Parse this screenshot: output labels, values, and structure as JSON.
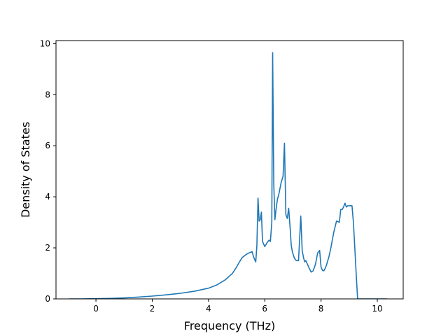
{
  "chart_data": {
    "type": "line",
    "title": "",
    "xlabel": "Frequency (THz)",
    "ylabel": "Density of States",
    "xlim": [
      -1.42,
      10.92
    ],
    "ylim": [
      0,
      10.12
    ],
    "xticks": [
      0,
      2,
      4,
      6,
      8,
      10
    ],
    "yticks": [
      0,
      2,
      4,
      6,
      8,
      10
    ],
    "grid": false,
    "legend": "none",
    "series": [
      {
        "color": "#1f77b4",
        "x": [
          -0.95,
          -0.5,
          0.0,
          0.5,
          1.0,
          1.5,
          2.0,
          2.5,
          3.0,
          3.5,
          4.0,
          4.3,
          4.6,
          4.85,
          5.0,
          5.1,
          5.2,
          5.35,
          5.5,
          5.55,
          5.6,
          5.68,
          5.72,
          5.76,
          5.8,
          5.84,
          5.88,
          5.92,
          6.0,
          6.08,
          6.15,
          6.2,
          6.25,
          6.28,
          6.32,
          6.36,
          6.4,
          6.45,
          6.5,
          6.58,
          6.65,
          6.7,
          6.75,
          6.8,
          6.85,
          6.9,
          6.94,
          6.98,
          7.05,
          7.12,
          7.2,
          7.28,
          7.33,
          7.38,
          7.42,
          7.46,
          7.52,
          7.58,
          7.65,
          7.72,
          7.8,
          7.88,
          7.95,
          8.0,
          8.05,
          8.1,
          8.15,
          8.2,
          8.28,
          8.35,
          8.45,
          8.55,
          8.65,
          8.7,
          8.75,
          8.8,
          8.85,
          8.9,
          8.95,
          9.0,
          9.1,
          9.15,
          9.2,
          9.25,
          9.3,
          9.35,
          9.45,
          9.6,
          10.0,
          10.35
        ],
        "y": [
          0.0,
          0.0,
          0.01,
          0.02,
          0.04,
          0.07,
          0.11,
          0.16,
          0.22,
          0.3,
          0.42,
          0.55,
          0.75,
          1.0,
          1.25,
          1.45,
          1.62,
          1.75,
          1.83,
          1.85,
          1.65,
          1.45,
          2.1,
          3.95,
          3.05,
          3.1,
          3.4,
          2.25,
          2.05,
          2.2,
          2.3,
          2.25,
          3.0,
          9.65,
          4.5,
          3.1,
          3.5,
          3.9,
          4.1,
          4.55,
          4.8,
          6.1,
          3.3,
          3.15,
          3.55,
          2.8,
          2.1,
          1.85,
          1.6,
          1.5,
          1.5,
          3.25,
          1.9,
          1.6,
          1.45,
          1.5,
          1.35,
          1.2,
          1.05,
          1.1,
          1.35,
          1.8,
          1.9,
          1.25,
          1.12,
          1.1,
          1.2,
          1.35,
          1.65,
          2.0,
          2.6,
          3.05,
          3.0,
          3.5,
          3.5,
          3.6,
          3.75,
          3.6,
          3.65,
          3.65,
          3.65,
          3.0,
          2.0,
          0.95,
          0.0,
          0.0,
          0.0,
          0.0,
          0.0,
          0.0
        ]
      }
    ]
  }
}
